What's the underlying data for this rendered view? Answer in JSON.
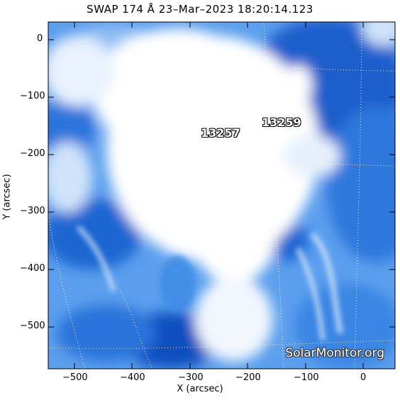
{
  "title": "SWAP 174 Å 23–Mar–2023 18:20:14.123",
  "axes": {
    "xlabel": "X (arcsec)",
    "ylabel": "Y (arcsec)",
    "x_ticks": [
      "−500",
      "−400",
      "−300",
      "−200",
      "−100",
      "0"
    ],
    "y_ticks": [
      "0",
      "−100",
      "−200",
      "−300",
      "−400",
      "−500"
    ]
  },
  "active_regions": [
    {
      "id": "ar-13257",
      "label": "13257"
    },
    {
      "id": "ar-13259",
      "label": "13259"
    }
  ],
  "watermark": "SolarMonitor.org",
  "colors": {
    "deep_blue": "#0a4fbf",
    "mid_blue": "#3d8ae6",
    "light_blue": "#a6ccf5",
    "white": "#ffffff"
  }
}
